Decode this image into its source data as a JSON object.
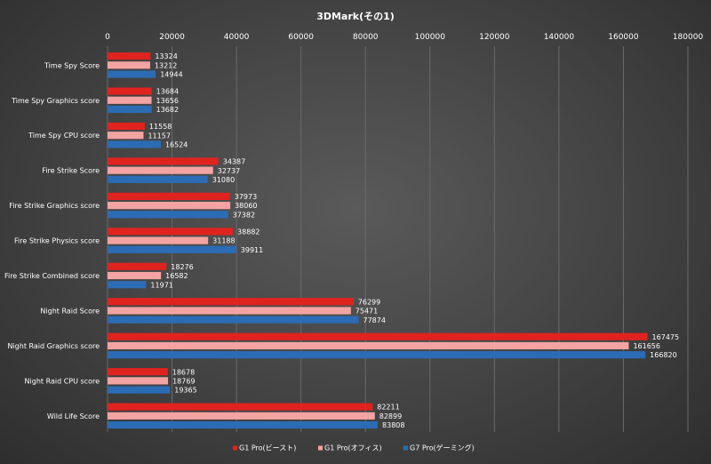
{
  "chart_data": {
    "type": "bar",
    "orientation": "horizontal",
    "title": "3DMark(その1)",
    "xlim": [
      0,
      180000
    ],
    "xticks": [
      0,
      20000,
      40000,
      60000,
      80000,
      100000,
      120000,
      140000,
      160000,
      180000
    ],
    "grid": true,
    "legend_position": "bottom",
    "categories": [
      "Time Spy Score",
      "Time Spy Graphics score",
      "Time Spy CPU score",
      "Fire Strike Score",
      "Fire Strike Graphics score",
      "Fire Strike Physics score",
      "Fire Strike Combined score",
      "Night Raid Score",
      "Night Raid Graphics score",
      "Night Raid CPU score",
      "Wild Life Score"
    ],
    "series": [
      {
        "name": "G1 Pro(ビースト)",
        "color": "#e0231f",
        "values": [
          13324,
          13684,
          11558,
          34387,
          37973,
          38882,
          18276,
          76299,
          167475,
          18678,
          82211
        ]
      },
      {
        "name": "G1 Pro(オフィス)",
        "color": "#f4a3a3",
        "values": [
          13212,
          13656,
          11157,
          32737,
          38060,
          31188,
          16582,
          75471,
          161656,
          18769,
          82899
        ]
      },
      {
        "name": "G7 Pro(ゲーミング)",
        "color": "#2b6cb5",
        "values": [
          14944,
          13682,
          16524,
          31080,
          37382,
          39911,
          11971,
          77874,
          166820,
          19365,
          83808
        ]
      }
    ]
  }
}
